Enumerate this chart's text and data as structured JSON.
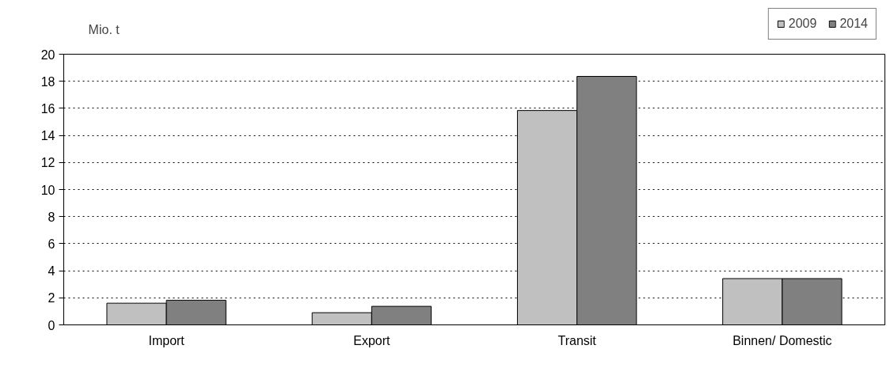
{
  "chart_data": {
    "type": "bar",
    "ylabel": "Mio. t",
    "categories": [
      "Import",
      "Export",
      "Transit",
      "Binnen/ Domestic"
    ],
    "series": [
      {
        "name": "2009",
        "color": "#c0c0c0",
        "values": [
          1.6,
          0.9,
          15.84,
          3.42
        ]
      },
      {
        "name": "2014",
        "color": "#808080",
        "values": [
          1.82,
          1.37,
          18.36,
          3.42
        ]
      }
    ],
    "ylim": [
      0,
      20
    ],
    "yticks": [
      0,
      2,
      4,
      6,
      8,
      10,
      12,
      14,
      16,
      18,
      20
    ],
    "grid": "y",
    "legend": "top right"
  }
}
